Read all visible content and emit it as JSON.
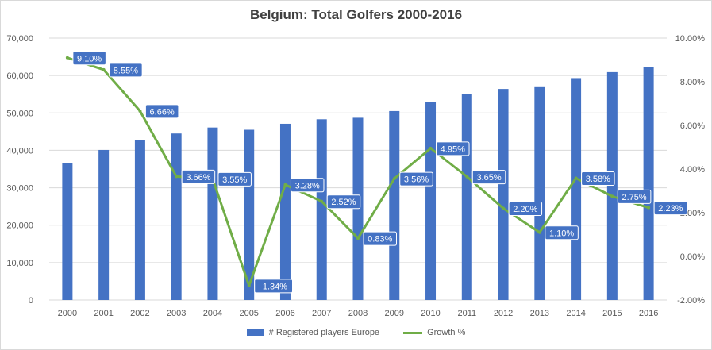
{
  "chart_data": {
    "type": "bar",
    "title": "Belgium: Total Golfers 2000-2016",
    "categories": [
      "2000",
      "2001",
      "2002",
      "2003",
      "2004",
      "2005",
      "2006",
      "2007",
      "2008",
      "2009",
      "2010",
      "2011",
      "2012",
      "2013",
      "2014",
      "2015",
      "2016"
    ],
    "series": [
      {
        "name": "# Registered players Europe",
        "type": "bar",
        "axis": "left",
        "color": "#4472c4",
        "values": [
          36500,
          40100,
          42800,
          44500,
          46100,
          45500,
          47100,
          48300,
          48700,
          50500,
          53000,
          55100,
          56400,
          57100,
          59300,
          60900,
          62200
        ]
      },
      {
        "name": "Growth %",
        "type": "line",
        "axis": "right",
        "color": "#70ad47",
        "values": [
          9.1,
          8.55,
          6.66,
          3.66,
          3.55,
          -1.34,
          3.28,
          2.52,
          0.83,
          3.56,
          4.95,
          3.65,
          2.2,
          1.1,
          3.58,
          2.75,
          2.23
        ],
        "labels": [
          "9.10%",
          "8.55%",
          "6.66%",
          "3.66%",
          "3.55%",
          "-1.34%",
          "3.28%",
          "2.52%",
          "0.83%",
          "3.56%",
          "4.95%",
          "3.65%",
          "2.20%",
          "1.10%",
          "3.58%",
          "2.75%",
          "2.23%"
        ]
      }
    ],
    "y_left": {
      "min": 0,
      "max": 70000,
      "ticks": [
        "0",
        "10,000",
        "20,000",
        "30,000",
        "40,000",
        "50,000",
        "60,000",
        "70,000"
      ]
    },
    "y_right": {
      "min": -2,
      "max": 10,
      "ticks": [
        "-2.00%",
        "0.00%",
        "2.00%",
        "4.00%",
        "6.00%",
        "8.00%",
        "10.00%"
      ]
    },
    "grid": true,
    "legend_position": "bottom"
  }
}
